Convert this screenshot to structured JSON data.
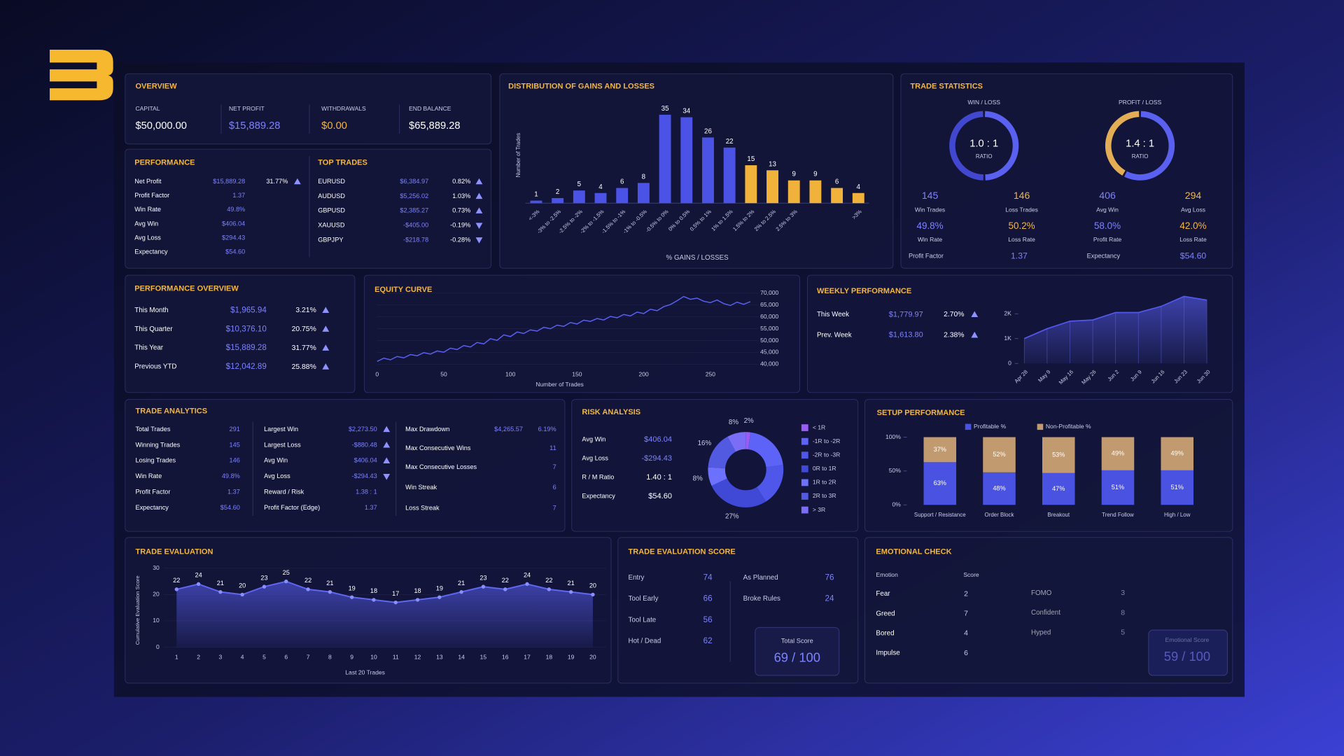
{
  "overview": {
    "title": "OVERVIEW",
    "items": [
      {
        "label": "CAPITAL",
        "value": "$50,000.00"
      },
      {
        "label": "NET PROFIT",
        "value": "$15,889.28"
      },
      {
        "label": "WITHDRAWALS",
        "value": "$0.00"
      },
      {
        "label": "END BALANCE",
        "value": "$65,889.28"
      }
    ]
  },
  "performance": {
    "title": "PERFORMANCE",
    "rows": [
      [
        "Net Profit",
        "$15,889.28",
        "31.77%"
      ],
      [
        "Profit Factor",
        "1.37"
      ],
      [
        "Win Rate",
        "49.8%"
      ],
      [
        "Avg Win",
        "$406.04"
      ],
      [
        "Avg Loss",
        "$294.43"
      ],
      [
        "Expectancy",
        "$54.60"
      ]
    ]
  },
  "top_trades": {
    "title": "TOP TRADES",
    "rows": [
      [
        "EURUSD",
        "$6,384.97",
        "0.82%"
      ],
      [
        "AUDUSD",
        "$5,256.02",
        "1.03%"
      ],
      [
        "GBPUSD",
        "$2,385.27",
        "0.73%"
      ],
      [
        "XAUUSD",
        "-$405.00",
        "-0.19%"
      ],
      [
        "GBPJPY",
        "-$218.78",
        "-0.28%"
      ]
    ]
  },
  "trade_statistics": {
    "title": "TRADE STATISTICS"
  },
  "performance_overview": {
    "title": "PERFORMANCE OVERVIEW",
    "rows": [
      [
        "This Month",
        "$1,965.94",
        "3.21%"
      ],
      [
        "This Quarter",
        "$10,376.10",
        "20.75%"
      ],
      [
        "This Year",
        "$15,889.28",
        "31.77%"
      ],
      [
        "Previous YTD",
        "$12,042.89",
        "25.88%"
      ]
    ]
  },
  "weekly_performance": {
    "title": "WEEKLY PERFORMANCE",
    "rows": [
      [
        "This Week",
        "$1,779.97",
        "2.70%"
      ],
      [
        "Prev. Week",
        "$1,613.80",
        "2.38%"
      ]
    ]
  },
  "trade_analytics": {
    "title": "TRADE ANALYTICS",
    "columns": [
      [
        [
          "Total Trades",
          "291"
        ],
        [
          "Winning Trades",
          "145"
        ],
        [
          "Losing Trades",
          "146"
        ],
        [
          "Win Rate",
          "49.8%"
        ],
        [
          "Profit Factor",
          "1.37"
        ],
        [
          "Expectancy",
          "$54.60"
        ]
      ],
      [
        [
          "Largest Win",
          "$2,273.50"
        ],
        [
          "Largest Loss",
          "-$880.48"
        ],
        [
          "Avg Win",
          "$406.04"
        ],
        [
          "Avg Loss",
          "-$294.43"
        ],
        [
          "Reward / Risk",
          "1.38 : 1"
        ],
        [
          "Profit Factor (Edge)",
          "1.37"
        ]
      ],
      [
        [
          "Max Drawdown",
          "$4,265.57",
          "6.19%"
        ],
        [
          "Max Consecutive Wins",
          "11"
        ],
        [
          "Max Consecutive Losses",
          "7"
        ],
        [
          "Win Streak",
          "6"
        ],
        [
          "Loss Streak",
          "7"
        ]
      ]
    ]
  },
  "risk_analysis": {
    "title": "RISK ANALYSIS",
    "rows": [
      [
        "Avg Win",
        "$406.04"
      ],
      [
        "Avg Loss",
        "-$294.43"
      ],
      [
        "R / M Ratio",
        "1.40 : 1"
      ],
      [
        "Expectancy",
        "$54.60"
      ]
    ]
  },
  "trade_evaluation_score": {
    "title": "TRADE EVALUATION SCORE",
    "left": [
      [
        "Entry",
        "74"
      ],
      [
        "Tool Early",
        "66"
      ],
      [
        "Tool Late",
        "56"
      ],
      [
        "Hot / Dead",
        "62"
      ]
    ],
    "right": [
      [
        "As Planned",
        "76"
      ],
      [
        "Broke Rules",
        "24"
      ]
    ],
    "total_label": "Total Score",
    "total": "69 / 100"
  },
  "emotional_check": {
    "title": "EMOTIONAL CHECK",
    "headers": [
      "Emotion",
      "Score"
    ],
    "left": [
      [
        "Fear",
        "2"
      ],
      [
        "Greed",
        "7"
      ],
      [
        "Bored",
        "4"
      ],
      [
        "Impulse",
        "6"
      ]
    ],
    "right": [
      [
        "FOMO",
        "3"
      ],
      [
        "Confident",
        "8"
      ],
      [
        "Hyped",
        "5"
      ]
    ],
    "total_label": "Emotional Score",
    "total": "59 / 100"
  },
  "chart_data": [
    {
      "type": "bar",
      "title": "DISTRIBUTION OF GAINS AND LOSSES",
      "y_label": "Number of Trades",
      "x_label": "% GAINS / LOSSES",
      "categories": [
        "<-3%",
        "-3% to -2.5%",
        "-2.5% to -2%",
        "-2% to -1.5%",
        "-1.5% to -1%",
        "-1% to -0.5%",
        "-0.5% to 0%",
        "0% to 0.5%",
        "0.5% to 1%",
        "1% to 1.5%",
        "1.5% to 2%",
        "2% to 2.5%",
        "2.5% to 3%",
        null,
        null,
        ">3%"
      ],
      "values": [
        1,
        2,
        5,
        4,
        6,
        8,
        35,
        34,
        26,
        22,
        15,
        13,
        9,
        9,
        6,
        4
      ],
      "colors": [
        "#4b52e6",
        "#4b52e6",
        "#4b52e6",
        "#4b52e6",
        "#4b52e6",
        "#4b52e6",
        "#4b52e6",
        "#4b52e6",
        "#4b52e6",
        "#4b52e6",
        "#f0b23a",
        "#f0b23a",
        "#f0b23a",
        "#f0b23a",
        "#f0b23a",
        "#f0b23a"
      ],
      "ylim": [
        0,
        38
      ]
    },
    {
      "type": "line",
      "title": "EQUITY CURVE",
      "x_label": "Number of Trades",
      "color": "#5a5ff5",
      "x": [
        0,
        5,
        10,
        15,
        20,
        25,
        30,
        35,
        40,
        45,
        50,
        55,
        60,
        65,
        70,
        75,
        80,
        85,
        90,
        95,
        100,
        105,
        110,
        115,
        120,
        125,
        130,
        135,
        140,
        145,
        150,
        155,
        160,
        165,
        170,
        175,
        180,
        185,
        190,
        195,
        200,
        205,
        210,
        215,
        220,
        225,
        230,
        235,
        240,
        245,
        250,
        255,
        260,
        265,
        270,
        275,
        280
      ],
      "values": [
        41200,
        42600,
        41900,
        43300,
        42700,
        44100,
        43600,
        44900,
        44300,
        45600,
        45100,
        46800,
        46200,
        47900,
        47300,
        49200,
        48600,
        50800,
        50100,
        52400,
        51700,
        53600,
        53000,
        54500,
        54000,
        55600,
        55000,
        56500,
        56000,
        57600,
        57000,
        58600,
        58100,
        59300,
        58700,
        60200,
        59600,
        61000,
        60400,
        62000,
        61400,
        63200,
        62600,
        64300,
        65200,
        66800,
        68600,
        67400,
        67900,
        66600,
        66000,
        67100,
        65600,
        64800,
        66200,
        65300,
        66400
      ],
      "xlim": [
        0,
        290
      ],
      "xticks": [
        0,
        50,
        100,
        150,
        200,
        250
      ],
      "ylim": [
        40000,
        70000
      ],
      "yticks": [
        {
          "value": 40000,
          "label": "40,000"
        },
        {
          "value": 45000,
          "label": "45,000"
        },
        {
          "value": 50000,
          "label": "50,000"
        },
        {
          "value": 55000,
          "label": "55,000"
        },
        {
          "value": 60000,
          "label": "60,000"
        },
        {
          "value": 65000,
          "label": "65,000"
        },
        {
          "value": 70000,
          "label": "70,000"
        }
      ]
    },
    {
      "type": "area",
      "color": "#5258ee",
      "categories": [
        "Apr 28",
        "May 9",
        "May 16",
        "May 26",
        "Jun 2",
        "Jun 9",
        "Jun 16",
        "Jun 23",
        "Jun 30"
      ],
      "values": [
        1000,
        1400,
        1700,
        1750,
        2050,
        2050,
        2300,
        2700,
        2550
      ],
      "ylim": [
        0,
        2900
      ],
      "yticks": [
        0,
        {
          "value": 1000,
          "label": "1K"
        },
        {
          "value": 2000,
          "label": "2K"
        }
      ]
    },
    {
      "type": "donut",
      "title": "WIN / LOSS",
      "center": "1.0 : 1",
      "center_label": "RATIO",
      "categories": [
        "Win Trades",
        "Loss Trades"
      ],
      "values": [
        145,
        146
      ],
      "colors": [
        "#5a60f0",
        "#4147cf"
      ],
      "rates": [
        "49.8%",
        "50.2%"
      ],
      "rate_labels": [
        "Win Rate",
        "Loss Rate"
      ],
      "footer_label": "Profit Factor",
      "footer_value": "1.37"
    },
    {
      "type": "donut",
      "title": "PROFIT / LOSS",
      "center": "1.4 : 1",
      "center_label": "RATIO",
      "categories": [
        "Avg Win",
        "Avg Loss"
      ],
      "values": [
        406,
        294
      ],
      "colors": [
        "#5a60f0",
        "#e3ad55"
      ],
      "rates": [
        "58.0%",
        "42.0%"
      ],
      "rate_labels": [
        "Profit Rate",
        "Loss Rate"
      ],
      "footer_label": "Expectancy",
      "footer_value": "$54.60"
    },
    {
      "type": "pie",
      "categories": [
        "< 1R",
        "-1R to -2R",
        "-2R to -3R",
        "0R to 1R",
        "1R to 2R",
        "2R to 3R",
        "> 3R"
      ],
      "values": [
        2,
        21,
        18,
        27,
        8,
        16,
        8
      ],
      "value_labels": [
        "2%",
        null,
        null,
        "27%",
        "8%",
        "16%",
        "8%"
      ],
      "colors": [
        "#9a5cf2",
        "#5c63f6",
        "#4e57ea",
        "#4049d6",
        "#6c72ff",
        "#525ae2",
        "#7b6ef6"
      ]
    },
    {
      "type": "stacked_bar",
      "title": "SETUP PERFORMANCE",
      "categories": [
        "Support / Resistance",
        "Order Block",
        "Breakout",
        "Trend Follow",
        "High / Low"
      ],
      "series": [
        {
          "name": "Profitable %",
          "color": "#4a52e2",
          "values": [
            63,
            48,
            47,
            51,
            51
          ],
          "value_labels": [
            "63%",
            "48%",
            "47%",
            "51%",
            "51%"
          ]
        },
        {
          "name": "Non-Profitable %",
          "color": "#c29a70",
          "values": [
            37,
            52,
            53,
            49,
            49
          ],
          "value_labels": [
            "37%",
            "52%",
            "53%",
            "49%",
            "49%"
          ]
        }
      ],
      "ylim": [
        0,
        100
      ],
      "yticks": [
        {
          "value": 0,
          "label": "0%"
        },
        {
          "value": 50,
          "label": "50%"
        },
        {
          "value": 100,
          "label": "100%"
        }
      ]
    },
    {
      "type": "line",
      "title": "TRADE EVALUATION",
      "y_label": "Cumulative Evaluation Score",
      "x_label": "Last 20 Trades",
      "color": "#6066f4",
      "x": [
        1,
        2,
        3,
        4,
        5,
        6,
        7,
        8,
        9,
        10,
        11,
        12,
        13,
        14,
        15,
        16,
        17,
        18,
        19,
        20
      ],
      "values": [
        22,
        24,
        21,
        20,
        23,
        25,
        22,
        21,
        19,
        18,
        17,
        18,
        19,
        21,
        23,
        22,
        24,
        22,
        21,
        20
      ],
      "xlim": [
        0.4,
        20.6
      ],
      "xticks": [
        1,
        2,
        3,
        4,
        5,
        6,
        7,
        8,
        9,
        10,
        11,
        12,
        13,
        14,
        15,
        16,
        17,
        18,
        19,
        20
      ],
      "ylim": [
        0,
        30
      ],
      "yticks": [
        0,
        10,
        20,
        30
      ]
    }
  ]
}
